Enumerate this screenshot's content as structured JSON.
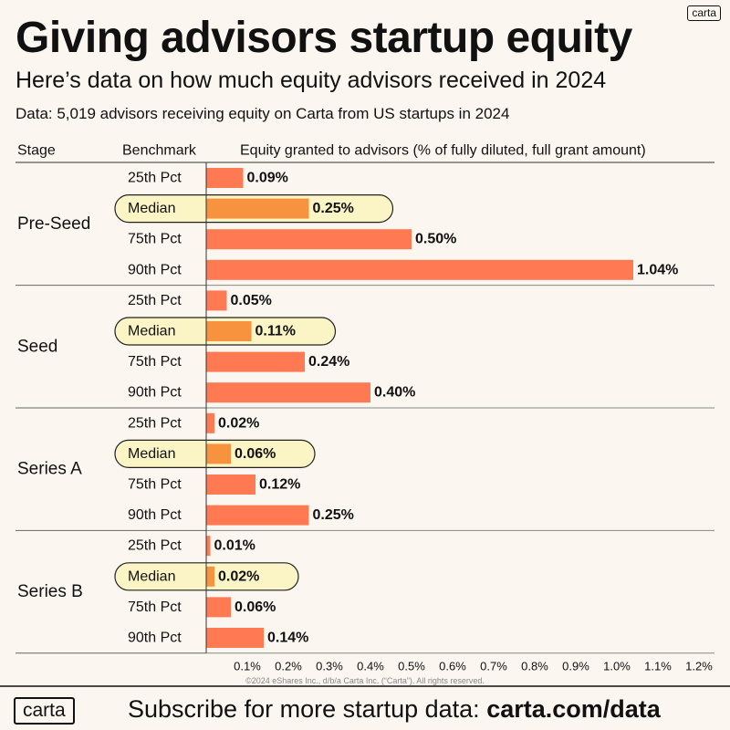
{
  "brand": {
    "small_logo": "carta",
    "footer_logo": "carta"
  },
  "header": {
    "title": "Giving advisors startup equity",
    "subtitle": "Here’s data on how much equity advisors received in 2024",
    "source": "Data: 5,019 advisors receiving equity on Carta from US startups in 2024"
  },
  "footer": {
    "copyright": "©2024 eShares Inc., d/b/a Carta Inc. (“Carta”). All rights reserved.",
    "subscribe_text": "Subscribe for more startup data: ",
    "subscribe_url": "carta.com/data"
  },
  "colors": {
    "bar": "#ff7a52",
    "median_bar": "#f7923f",
    "median_highlight": "#fbf5c5",
    "background": "#fbf7f0",
    "text": "#111111"
  },
  "chart_data": {
    "type": "bar",
    "orientation": "horizontal",
    "column_headers": {
      "stage": "Stage",
      "benchmark": "Benchmark",
      "value": "Equity granted to advisors (% of fully diluted, full grant amount)"
    },
    "value_unit": "%",
    "xlim": [
      0,
      1.2
    ],
    "x_ticks": [
      0.1,
      0.2,
      0.3,
      0.4,
      0.5,
      0.6,
      0.7,
      0.8,
      0.9,
      1.0,
      1.1,
      1.2
    ],
    "x_tick_labels": [
      "0.1%",
      "0.2%",
      "0.3%",
      "0.4%",
      "0.5%",
      "0.6%",
      "0.7%",
      "0.8%",
      "0.9%",
      "1.0%",
      "1.1%",
      "1.2%"
    ],
    "groups": [
      {
        "stage": "Pre-Seed",
        "rows": [
          {
            "benchmark": "25th Pct",
            "value": 0.09,
            "label": "0.09%"
          },
          {
            "benchmark": "Median",
            "value": 0.25,
            "label": "0.25%",
            "highlight": true
          },
          {
            "benchmark": "75th Pct",
            "value": 0.5,
            "label": "0.50%"
          },
          {
            "benchmark": "90th Pct",
            "value": 1.04,
            "label": "1.04%"
          }
        ]
      },
      {
        "stage": "Seed",
        "rows": [
          {
            "benchmark": "25th Pct",
            "value": 0.05,
            "label": "0.05%"
          },
          {
            "benchmark": "Median",
            "value": 0.11,
            "label": "0.11%",
            "highlight": true
          },
          {
            "benchmark": "75th Pct",
            "value": 0.24,
            "label": "0.24%"
          },
          {
            "benchmark": "90th Pct",
            "value": 0.4,
            "label": "0.40%"
          }
        ]
      },
      {
        "stage": "Series A",
        "rows": [
          {
            "benchmark": "25th Pct",
            "value": 0.02,
            "label": "0.02%"
          },
          {
            "benchmark": "Median",
            "value": 0.06,
            "label": "0.06%",
            "highlight": true
          },
          {
            "benchmark": "75th Pct",
            "value": 0.12,
            "label": "0.12%"
          },
          {
            "benchmark": "90th Pct",
            "value": 0.25,
            "label": "0.25%"
          }
        ]
      },
      {
        "stage": "Series B",
        "rows": [
          {
            "benchmark": "25th Pct",
            "value": 0.01,
            "label": "0.01%"
          },
          {
            "benchmark": "Median",
            "value": 0.02,
            "label": "0.02%",
            "highlight": true
          },
          {
            "benchmark": "75th Pct",
            "value": 0.06,
            "label": "0.06%"
          },
          {
            "benchmark": "90th Pct",
            "value": 0.14,
            "label": "0.14%"
          }
        ]
      }
    ]
  }
}
